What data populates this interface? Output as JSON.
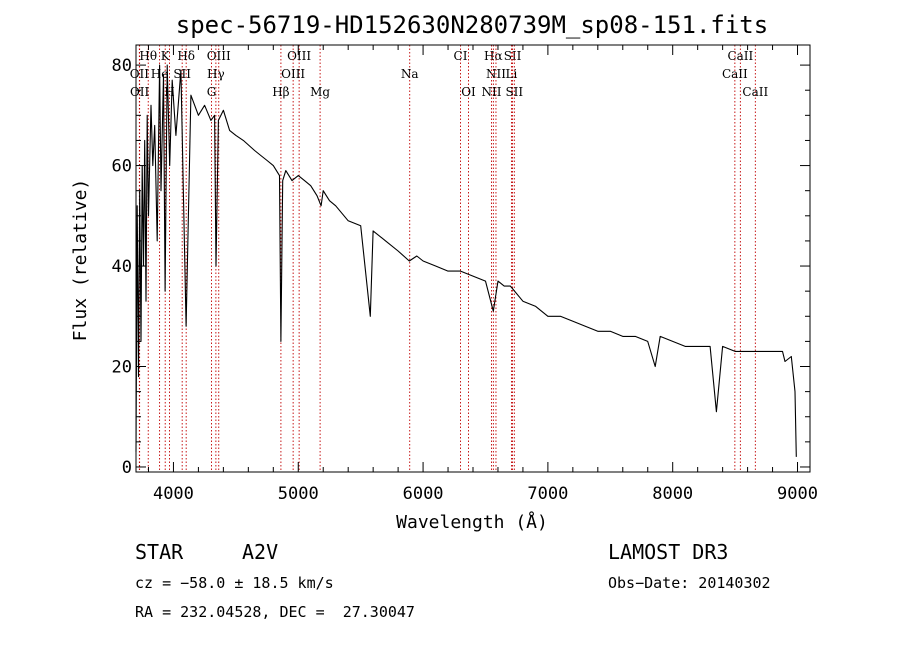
{
  "chart_data": {
    "type": "line",
    "title": "spec-56719-HD152630N280739M_sp08-151.fits",
    "xlabel": "Wavelength (Å)",
    "ylabel": "Flux (relative)",
    "xlim": [
      3700,
      9100
    ],
    "ylim": [
      -1,
      84
    ],
    "xticks": [
      4000,
      5000,
      6000,
      7000,
      8000,
      9000
    ],
    "yticks": [
      0,
      20,
      40,
      60,
      80
    ],
    "series": [
      {
        "name": "spectrum",
        "x": [
          3700,
          3710,
          3720,
          3730,
          3740,
          3750,
          3760,
          3770,
          3780,
          3790,
          3800,
          3820,
          3835,
          3850,
          3870,
          3889,
          3900,
          3920,
          3933,
          3950,
          3970,
          3990,
          4020,
          4060,
          4101,
          4140,
          4200,
          4250,
          4300,
          4330,
          4341,
          4360,
          4400,
          4450,
          4500,
          4560,
          4650,
          4700,
          4750,
          4800,
          4850,
          4861,
          4875,
          4900,
          4950,
          5000,
          5050,
          5100,
          5150,
          5183,
          5200,
          5250,
          5300,
          5400,
          5500,
          5577,
          5600,
          5700,
          5800,
          5890,
          5950,
          6000,
          6100,
          6200,
          6300,
          6400,
          6500,
          6563,
          6600,
          6650,
          6700,
          6800,
          6900,
          7000,
          7100,
          7200,
          7300,
          7400,
          7500,
          7600,
          7700,
          7800,
          7860,
          7900,
          8000,
          8100,
          8200,
          8300,
          8350,
          8400,
          8500,
          8600,
          8700,
          8800,
          8880,
          8900,
          8950,
          8980,
          8990
        ],
        "y": [
          3,
          52,
          18,
          55,
          25,
          60,
          40,
          65,
          33,
          70,
          50,
          72,
          60,
          68,
          45,
          80,
          55,
          78,
          35,
          80,
          60,
          77,
          66,
          79,
          28,
          74,
          70,
          72,
          69,
          70,
          40,
          69,
          71,
          67,
          66,
          65,
          63,
          62,
          61,
          60,
          58,
          25,
          57,
          59,
          57,
          58,
          57,
          56,
          54,
          52,
          55,
          53,
          52,
          49,
          48,
          30,
          47,
          45,
          43,
          41,
          42,
          41,
          40,
          39,
          39,
          38,
          37,
          31,
          37,
          36,
          36,
          33,
          32,
          30,
          30,
          29,
          28,
          27,
          27,
          26,
          26,
          25,
          20,
          26,
          25,
          24,
          24,
          24,
          11,
          24,
          23,
          23,
          23,
          23,
          23,
          21,
          22,
          15,
          2
        ]
      }
    ],
    "lines": [
      {
        "label": "Hθ",
        "x": 3798,
        "row": 0
      },
      {
        "label": "K",
        "x": 3934,
        "row": 0
      },
      {
        "label": "Hδ",
        "x": 4102,
        "row": 0
      },
      {
        "label": "OIII",
        "x": 4363,
        "row": 0
      },
      {
        "label": "OIII",
        "x": 5007,
        "row": 0
      },
      {
        "label": "CI",
        "x": 6300,
        "row": 0
      },
      {
        "label": "Hα",
        "x": 6563,
        "row": 0
      },
      {
        "label": "SII",
        "x": 6717,
        "row": 0
      },
      {
        "label": "CaII",
        "x": 8542,
        "row": 0
      },
      {
        "label": "OII",
        "x": 3727,
        "row": 1
      },
      {
        "label": "He",
        "x": 3889,
        "row": 1
      },
      {
        "label": "SII",
        "x": 4070,
        "row": 1
      },
      {
        "label": "Hγ",
        "x": 4340,
        "row": 1
      },
      {
        "label": "OIII",
        "x": 4959,
        "row": 1
      },
      {
        "label": "Na",
        "x": 5893,
        "row": 1
      },
      {
        "label": "NII",
        "x": 6584,
        "row": 1
      },
      {
        "label": "Li",
        "x": 6708,
        "row": 1
      },
      {
        "label": "CaII",
        "x": 8498,
        "row": 1
      },
      {
        "label": "OII",
        "x": 3729,
        "row": 2
      },
      {
        "label": "H",
        "x": 3968,
        "row": 2
      },
      {
        "label": "G",
        "x": 4305,
        "row": 2
      },
      {
        "label": "Hβ",
        "x": 4861,
        "row": 2
      },
      {
        "label": "Mg",
        "x": 5175,
        "row": 2
      },
      {
        "label": "OI",
        "x": 6364,
        "row": 2
      },
      {
        "label": "NII",
        "x": 6548,
        "row": 2
      },
      {
        "label": "SII",
        "x": 6731,
        "row": 2
      },
      {
        "label": "CaII",
        "x": 8662,
        "row": 2
      }
    ]
  },
  "info": {
    "object": "STAR",
    "subclass": "A2V",
    "survey": "LAMOST DR3",
    "cz": "cz = −58.0 ± 18.5 km/s",
    "obs_date": "Obs−Date: 20140302",
    "coords": "RA = 232.04528, DEC =  27.30047"
  }
}
